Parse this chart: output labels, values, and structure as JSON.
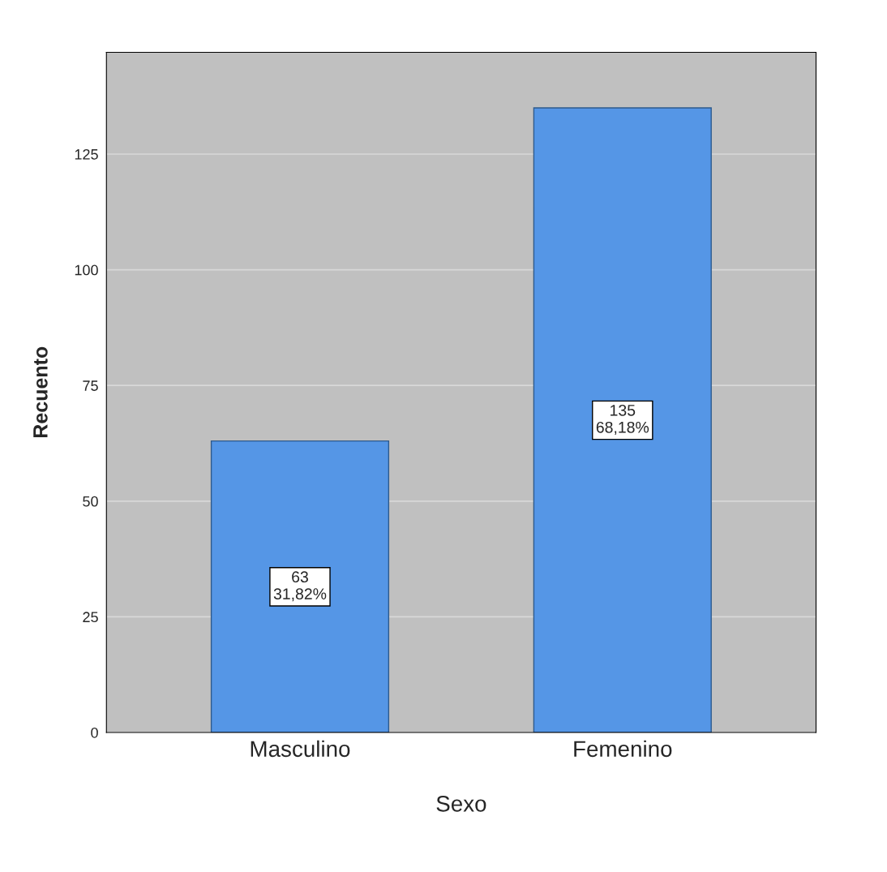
{
  "chart_data": {
    "type": "bar",
    "xlabel": "Sexo",
    "ylabel": "Recuento",
    "categories": [
      "Masculino",
      "Femenino"
    ],
    "values": [
      63,
      135
    ],
    "value_labels": [
      "63\n31,82%",
      "135\n68,18%"
    ],
    "color": "#5596e6",
    "ylim": [
      0,
      147
    ],
    "yticks": [
      0,
      25,
      50,
      75,
      100,
      125
    ],
    "grid": "y"
  }
}
